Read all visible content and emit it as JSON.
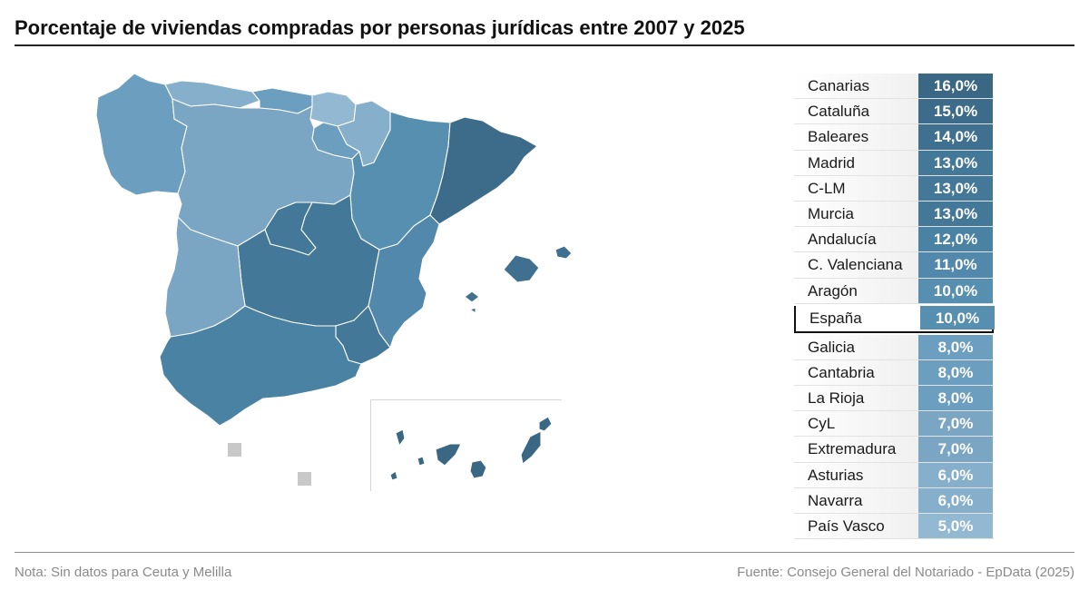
{
  "title": "Porcentaje de viviendas compradas por personas jurídicas entre 2007 y 2025",
  "note": "Nota: Sin datos para Ceuta y Melilla",
  "source": "Fuente: Consejo General del Notariado - EpData (2025)",
  "colors": {
    "v16": "#3a6784",
    "v15": "#3d6c8a",
    "v14": "#40708f",
    "v13": "#437898",
    "v12": "#4a82a3",
    "v11": "#5188ab",
    "v10": "#578fb0",
    "v8": "#6c9ebf",
    "v7": "#7aa6c4",
    "v6": "#86afcb",
    "v5": "#93b8d1",
    "nodata": "#c8c8c8"
  },
  "ranking": [
    {
      "name": "Canarias",
      "value": "16,0%",
      "pct": 16.0,
      "color": "#3a6784"
    },
    {
      "name": "Cataluña",
      "value": "15,0%",
      "pct": 15.0,
      "color": "#3d6c8a"
    },
    {
      "name": "Baleares",
      "value": "14,0%",
      "pct": 14.0,
      "color": "#40708f"
    },
    {
      "name": "Madrid",
      "value": "13,0%",
      "pct": 13.0,
      "color": "#437898"
    },
    {
      "name": "C-LM",
      "value": "13,0%",
      "pct": 13.0,
      "color": "#437898"
    },
    {
      "name": "Murcia",
      "value": "13,0%",
      "pct": 13.0,
      "color": "#437898"
    },
    {
      "name": "Andalucía",
      "value": "12,0%",
      "pct": 12.0,
      "color": "#4a82a3"
    },
    {
      "name": "C. Valenciana",
      "value": "11,0%",
      "pct": 11.0,
      "color": "#5188ab"
    },
    {
      "name": "Aragón",
      "value": "10,0%",
      "pct": 10.0,
      "color": "#578fb0"
    },
    {
      "name": "España",
      "value": "10,0%",
      "pct": 10.0,
      "color": "#578fb0",
      "highlight": true
    },
    {
      "name": "Galicia",
      "value": "8,0%",
      "pct": 8.0,
      "color": "#6c9ebf"
    },
    {
      "name": "Cantabria",
      "value": "8,0%",
      "pct": 8.0,
      "color": "#6c9ebf"
    },
    {
      "name": "La Rioja",
      "value": "8,0%",
      "pct": 8.0,
      "color": "#6c9ebf"
    },
    {
      "name": "CyL",
      "value": "7,0%",
      "pct": 7.0,
      "color": "#7aa6c4"
    },
    {
      "name": "Extremadura",
      "value": "7,0%",
      "pct": 7.0,
      "color": "#7aa6c4"
    },
    {
      "name": "Asturias",
      "value": "6,0%",
      "pct": 6.0,
      "color": "#86afcb"
    },
    {
      "name": "Navarra",
      "value": "6,0%",
      "pct": 6.0,
      "color": "#86afcb"
    },
    {
      "name": "País Vasco",
      "value": "5,0%",
      "pct": 5.0,
      "color": "#93b8d1"
    }
  ]
}
